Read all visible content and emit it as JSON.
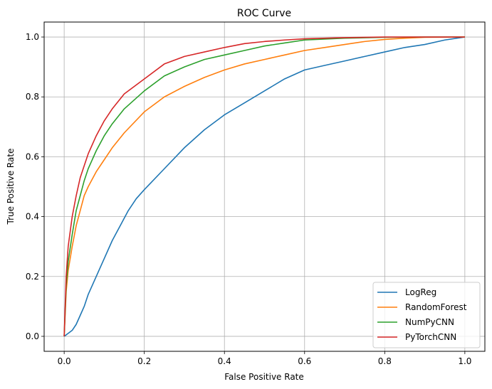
{
  "chart_data": {
    "type": "line",
    "title": "ROC Curve",
    "xlabel": "False Positive Rate",
    "ylabel": "True Positive Rate",
    "xlim": [
      -0.05,
      1.05
    ],
    "ylim": [
      -0.05,
      1.05
    ],
    "xticks": [
      0.0,
      0.2,
      0.4,
      0.6,
      0.8,
      1.0
    ],
    "yticks": [
      0.0,
      0.2,
      0.4,
      0.6,
      0.8,
      1.0
    ],
    "xtick_labels": [
      "0.0",
      "0.2",
      "0.4",
      "0.6",
      "0.8",
      "1.0"
    ],
    "ytick_labels": [
      "0.0",
      "0.2",
      "0.4",
      "0.6",
      "0.8",
      "1.0"
    ],
    "grid": true,
    "legend_position": "lower-right",
    "series": [
      {
        "name": "LogReg",
        "color": "#1f77b4",
        "x": [
          0.0,
          0.01,
          0.02,
          0.03,
          0.04,
          0.05,
          0.06,
          0.07,
          0.08,
          0.1,
          0.12,
          0.14,
          0.16,
          0.18,
          0.2,
          0.25,
          0.3,
          0.35,
          0.4,
          0.45,
          0.5,
          0.55,
          0.6,
          0.65,
          0.7,
          0.75,
          0.8,
          0.85,
          0.9,
          0.95,
          1.0
        ],
        "y": [
          0.0,
          0.01,
          0.02,
          0.04,
          0.07,
          0.1,
          0.14,
          0.17,
          0.2,
          0.26,
          0.32,
          0.37,
          0.42,
          0.46,
          0.49,
          0.56,
          0.63,
          0.69,
          0.74,
          0.78,
          0.82,
          0.86,
          0.89,
          0.905,
          0.92,
          0.935,
          0.95,
          0.965,
          0.975,
          0.99,
          1.0
        ]
      },
      {
        "name": "RandomForest",
        "color": "#ff7f0e",
        "x": [
          0.0,
          0.005,
          0.01,
          0.02,
          0.03,
          0.04,
          0.05,
          0.06,
          0.08,
          0.1,
          0.12,
          0.15,
          0.2,
          0.25,
          0.3,
          0.35,
          0.4,
          0.45,
          0.5,
          0.55,
          0.6,
          0.65,
          0.7,
          0.75,
          0.8,
          0.85,
          0.9,
          1.0
        ],
        "y": [
          0.0,
          0.15,
          0.22,
          0.3,
          0.37,
          0.42,
          0.47,
          0.5,
          0.55,
          0.59,
          0.63,
          0.68,
          0.75,
          0.8,
          0.835,
          0.865,
          0.89,
          0.91,
          0.925,
          0.94,
          0.955,
          0.965,
          0.975,
          0.985,
          0.992,
          0.996,
          0.999,
          1.0
        ]
      },
      {
        "name": "NumPyCNN",
        "color": "#2ca02c",
        "x": [
          0.0,
          0.005,
          0.01,
          0.02,
          0.03,
          0.04,
          0.05,
          0.06,
          0.08,
          0.1,
          0.12,
          0.15,
          0.2,
          0.25,
          0.3,
          0.35,
          0.4,
          0.45,
          0.5,
          0.55,
          0.6,
          0.7,
          0.8,
          0.9,
          1.0
        ],
        "y": [
          0.0,
          0.17,
          0.25,
          0.34,
          0.42,
          0.47,
          0.52,
          0.56,
          0.62,
          0.67,
          0.71,
          0.76,
          0.82,
          0.87,
          0.9,
          0.925,
          0.94,
          0.955,
          0.97,
          0.98,
          0.99,
          0.996,
          0.999,
          1.0,
          1.0
        ]
      },
      {
        "name": "PyTorchCNN",
        "color": "#d62728",
        "x": [
          0.0,
          0.005,
          0.01,
          0.02,
          0.03,
          0.04,
          0.05,
          0.06,
          0.08,
          0.1,
          0.12,
          0.15,
          0.2,
          0.25,
          0.3,
          0.35,
          0.4,
          0.45,
          0.5,
          0.55,
          0.6,
          0.7,
          0.8,
          0.9,
          1.0
        ],
        "y": [
          0.0,
          0.2,
          0.3,
          0.4,
          0.47,
          0.53,
          0.57,
          0.61,
          0.67,
          0.72,
          0.76,
          0.81,
          0.86,
          0.91,
          0.935,
          0.95,
          0.965,
          0.978,
          0.985,
          0.99,
          0.994,
          0.998,
          1.0,
          1.0,
          1.0
        ]
      }
    ]
  }
}
